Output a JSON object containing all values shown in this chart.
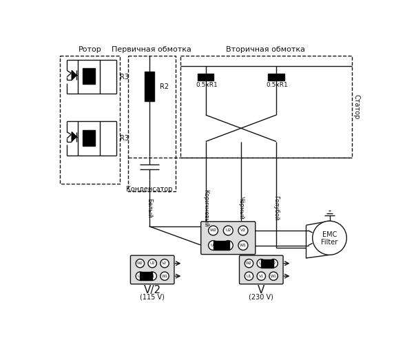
{
  "bg": "#ffffff",
  "lc": "#111111",
  "rotor_label": "Ротор",
  "primary_label": "Первичная обмотка",
  "secondary_label": "Вторичная обмотка",
  "stator_label": "Статор",
  "kondensator_label": "Конденсатор",
  "r2_label": "R2",
  "r3_label": "R3",
  "r1a_label": "0.5xR1",
  "r1b_label": "0.5xR1",
  "emc_line1": "EMC",
  "emc_line2": "Filter",
  "belyy": "Белый",
  "korichnevyy": "Коричневый",
  "chernyy": "Чёрный",
  "goluboy": "Голубой",
  "v2_label": "V/2",
  "v2_sub": "(115 V)",
  "v_label": "V",
  "v_sub": "(230 V)"
}
